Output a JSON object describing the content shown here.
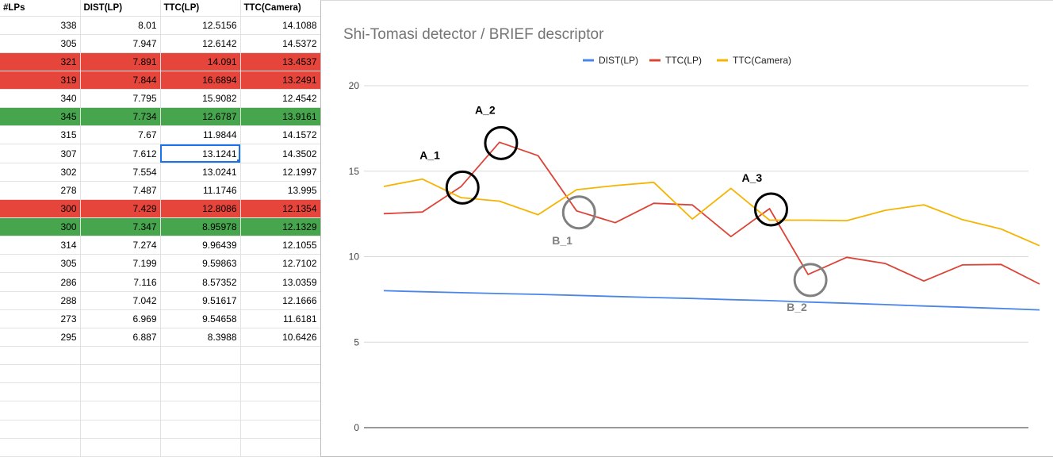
{
  "table": {
    "headers": [
      "#LPs",
      "DIST(LP)",
      "TTC(LP)",
      "TTC(Camera)"
    ],
    "rows": [
      {
        "lps": "338",
        "dist": "8.01",
        "ttc_lp": "12.5156",
        "ttc_cam": "14.1088",
        "highlight": ""
      },
      {
        "lps": "305",
        "dist": "7.947",
        "ttc_lp": "12.6142",
        "ttc_cam": "14.5372",
        "highlight": ""
      },
      {
        "lps": "321",
        "dist": "7.891",
        "ttc_lp": "14.091",
        "ttc_cam": "13.4537",
        "highlight": "red"
      },
      {
        "lps": "319",
        "dist": "7.844",
        "ttc_lp": "16.6894",
        "ttc_cam": "13.2491",
        "highlight": "red"
      },
      {
        "lps": "340",
        "dist": "7.795",
        "ttc_lp": "15.9082",
        "ttc_cam": "12.4542",
        "highlight": ""
      },
      {
        "lps": "345",
        "dist": "7.734",
        "ttc_lp": "12.6787",
        "ttc_cam": "13.9161",
        "highlight": "green"
      },
      {
        "lps": "315",
        "dist": "7.67",
        "ttc_lp": "11.9844",
        "ttc_cam": "14.1572",
        "highlight": ""
      },
      {
        "lps": "307",
        "dist": "7.612",
        "ttc_lp": "13.1241",
        "ttc_cam": "14.3502",
        "highlight": "",
        "selected": true
      },
      {
        "lps": "302",
        "dist": "7.554",
        "ttc_lp": "13.0241",
        "ttc_cam": "12.1997",
        "highlight": ""
      },
      {
        "lps": "278",
        "dist": "7.487",
        "ttc_lp": "11.1746",
        "ttc_cam": "13.995",
        "highlight": ""
      },
      {
        "lps": "300",
        "dist": "7.429",
        "ttc_lp": "12.8086",
        "ttc_cam": "12.1354",
        "highlight": "red"
      },
      {
        "lps": "300",
        "dist": "7.347",
        "ttc_lp": "8.95978",
        "ttc_cam": "12.1329",
        "highlight": "green"
      },
      {
        "lps": "314",
        "dist": "7.274",
        "ttc_lp": "9.96439",
        "ttc_cam": "12.1055",
        "highlight": ""
      },
      {
        "lps": "305",
        "dist": "7.199",
        "ttc_lp": "9.59863",
        "ttc_cam": "12.7102",
        "highlight": ""
      },
      {
        "lps": "286",
        "dist": "7.116",
        "ttc_lp": "8.57352",
        "ttc_cam": "13.0359",
        "highlight": ""
      },
      {
        "lps": "288",
        "dist": "7.042",
        "ttc_lp": "9.51617",
        "ttc_cam": "12.1666",
        "highlight": ""
      },
      {
        "lps": "273",
        "dist": "6.969",
        "ttc_lp": "9.54658",
        "ttc_cam": "11.6181",
        "highlight": ""
      },
      {
        "lps": "295",
        "dist": "6.887",
        "ttc_lp": "8.3988",
        "ttc_cam": "10.6426",
        "highlight": ""
      }
    ],
    "empty_rows": 6,
    "colors": {
      "red": "#e5453a",
      "green": "#46a54d",
      "selection": "#1a73e8"
    }
  },
  "chart_data": {
    "type": "line",
    "title": "Shi-Tomasi detector / BRIEF descriptor",
    "legend_position": "top",
    "ylim": [
      0,
      20
    ],
    "yticks": [
      0,
      5,
      10,
      15,
      20
    ],
    "grid": true,
    "series": [
      {
        "name": "DIST(LP)",
        "color": "#4a86e8",
        "values": [
          8.01,
          7.947,
          7.891,
          7.844,
          7.795,
          7.734,
          7.67,
          7.612,
          7.554,
          7.487,
          7.429,
          7.347,
          7.274,
          7.199,
          7.116,
          7.042,
          6.969,
          6.887
        ]
      },
      {
        "name": "TTC(LP)",
        "color": "#db4437",
        "values": [
          12.5156,
          12.6142,
          14.091,
          16.6894,
          15.9082,
          12.6787,
          11.9844,
          13.1241,
          13.0241,
          11.1746,
          12.8086,
          8.95978,
          9.96439,
          9.59863,
          8.57352,
          9.51617,
          9.54658,
          8.3988
        ]
      },
      {
        "name": "TTC(Camera)",
        "color": "#f4b400",
        "values": [
          14.1088,
          14.5372,
          13.4537,
          13.2491,
          12.4542,
          13.9161,
          14.1572,
          14.3502,
          12.1997,
          13.995,
          12.1354,
          12.1329,
          12.1055,
          12.7102,
          13.0359,
          12.1666,
          11.6181,
          10.6426
        ]
      }
    ],
    "annotations": [
      {
        "label": "A_1",
        "index": 2,
        "value": 14.091,
        "circle_color": "#000000",
        "text_color": "#000000"
      },
      {
        "label": "A_2",
        "index": 3,
        "value": 16.6894,
        "circle_color": "#000000",
        "text_color": "#000000"
      },
      {
        "label": "A_3",
        "index": 10,
        "value": 12.8086,
        "circle_color": "#000000",
        "text_color": "#000000"
      },
      {
        "label": "B_1",
        "index": 5,
        "value": 12.6787,
        "circle_color": "#808080",
        "text_color": "#808080"
      },
      {
        "label": "B_2",
        "index": 11,
        "value": 8.95978,
        "circle_color": "#808080",
        "text_color": "#808080"
      }
    ]
  }
}
